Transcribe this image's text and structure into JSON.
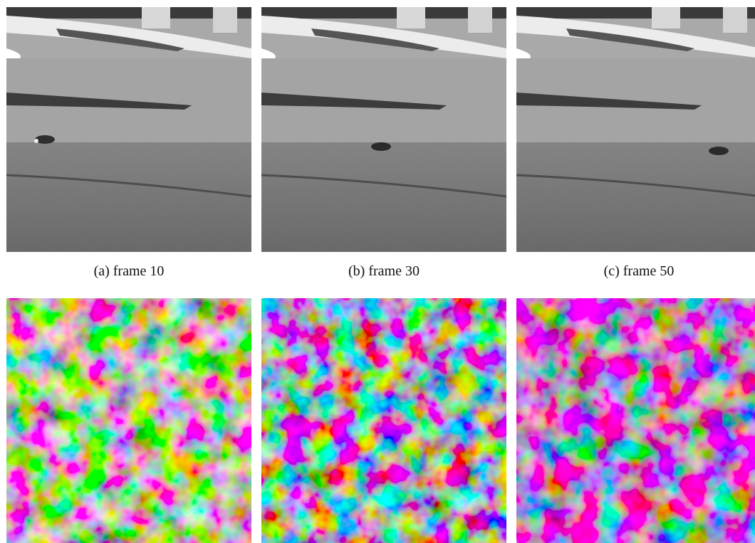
{
  "captions": [
    {
      "label": "(a) frame 10"
    },
    {
      "label": "(b) frame 30"
    },
    {
      "label": "(c) frame 50"
    }
  ],
  "photo_frames": [
    {
      "content": "grayscale frame: grass lawn, paved path, pillars at top, small animal on left side of lawn"
    },
    {
      "content": "grayscale frame: grass lawn, paved path, pillars at top, small animal near center"
    },
    {
      "content": "grayscale frame: grass lawn, paved path, pillars at top, small animal on right side"
    }
  ],
  "flow_fields": [
    {
      "content": "color-coded dense motion field visualization"
    },
    {
      "content": "color-coded dense motion field visualization"
    },
    {
      "content": "color-coded dense motion field visualization"
    }
  ]
}
